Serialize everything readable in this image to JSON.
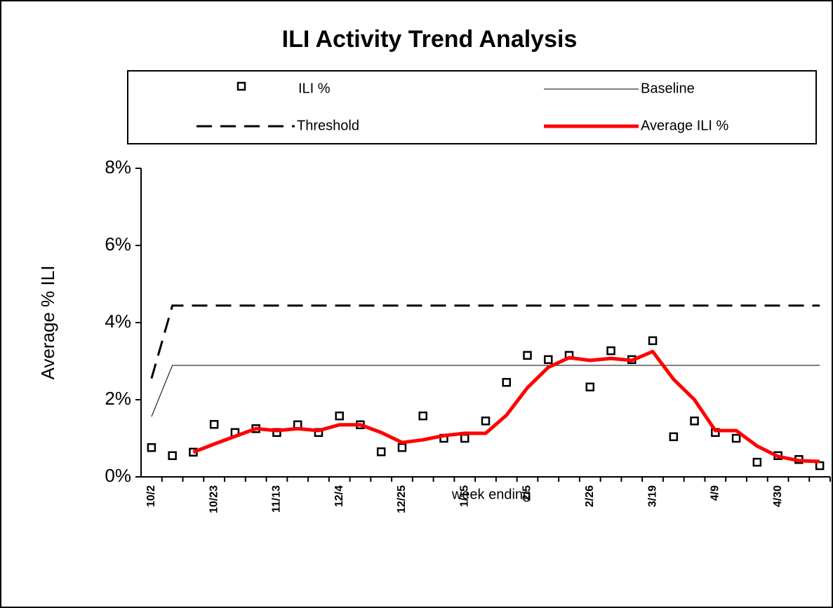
{
  "chart_data": {
    "type": "line",
    "title": "ILI Activity Trend Analysis",
    "x_label": "week ending",
    "y_label": "Average % ILI",
    "categories": [
      "10/2",
      null,
      null,
      "10/23",
      null,
      null,
      "11/13",
      null,
      null,
      "12/4",
      null,
      null,
      "12/25",
      null,
      null,
      "1/15",
      null,
      null,
      "2/5",
      null,
      null,
      "2/26",
      null,
      null,
      "3/19",
      null,
      null,
      "4/9",
      null,
      null,
      "4/30",
      null,
      null
    ],
    "series": [
      {
        "name": "ILI %",
        "color": "#000000",
        "style": "marker",
        "values": [
          0.76,
          0.55,
          0.64,
          1.36,
          1.15,
          1.25,
          1.15,
          1.35,
          1.15,
          1.58,
          1.35,
          0.65,
          0.76,
          1.58,
          1.0,
          1.0,
          1.45,
          2.45,
          3.15,
          3.04,
          3.15,
          2.33,
          3.27,
          3.04,
          3.53,
          1.04,
          1.45,
          1.15,
          1.0,
          0.38,
          0.55,
          0.45,
          0.29
        ]
      },
      {
        "name": "Baseline",
        "color": "#000000",
        "style": "thin",
        "values": [
          1.56,
          2.89,
          2.89,
          2.89,
          2.89,
          2.89,
          2.89,
          2.89,
          2.89,
          2.89,
          2.89,
          2.89,
          2.89,
          2.89,
          2.89,
          2.89,
          2.89,
          2.89,
          2.89,
          2.89,
          2.89,
          2.89,
          2.89,
          2.89,
          2.89,
          2.89,
          2.89,
          2.89,
          2.89,
          2.89,
          2.89,
          2.89,
          2.89
        ]
      },
      {
        "name": "Threshold",
        "color": "#000000",
        "style": "dashed",
        "values": [
          2.55,
          4.44,
          4.44,
          4.44,
          4.44,
          4.44,
          4.44,
          4.44,
          4.44,
          4.44,
          4.44,
          4.44,
          4.44,
          4.44,
          4.44,
          4.44,
          4.44,
          4.44,
          4.44,
          4.44,
          4.44,
          4.44,
          4.44,
          4.44,
          4.44,
          4.44,
          4.44,
          4.44,
          4.44,
          4.44,
          4.44,
          4.44,
          4.44
        ]
      },
      {
        "name": "Average ILI %",
        "color": "#ff0000",
        "style": "thick",
        "values": [
          null,
          null,
          0.64,
          0.85,
          1.05,
          1.25,
          1.2,
          1.25,
          1.2,
          1.35,
          1.35,
          1.15,
          0.89,
          0.96,
          1.07,
          1.13,
          1.13,
          1.6,
          2.31,
          2.84,
          3.09,
          3.02,
          3.07,
          3.02,
          3.25,
          2.53,
          2.0,
          1.2,
          1.2,
          0.8,
          0.53,
          0.42,
          0.4
        ]
      }
    ],
    "ylim": [
      0,
      8
    ],
    "yticks": [
      {
        "value": 0,
        "label": "0%"
      },
      {
        "value": 2,
        "label": "2%"
      },
      {
        "value": 4,
        "label": "4%"
      },
      {
        "value": 6,
        "label": "6%"
      },
      {
        "value": 8,
        "label": "8%"
      }
    ],
    "grid": false
  }
}
